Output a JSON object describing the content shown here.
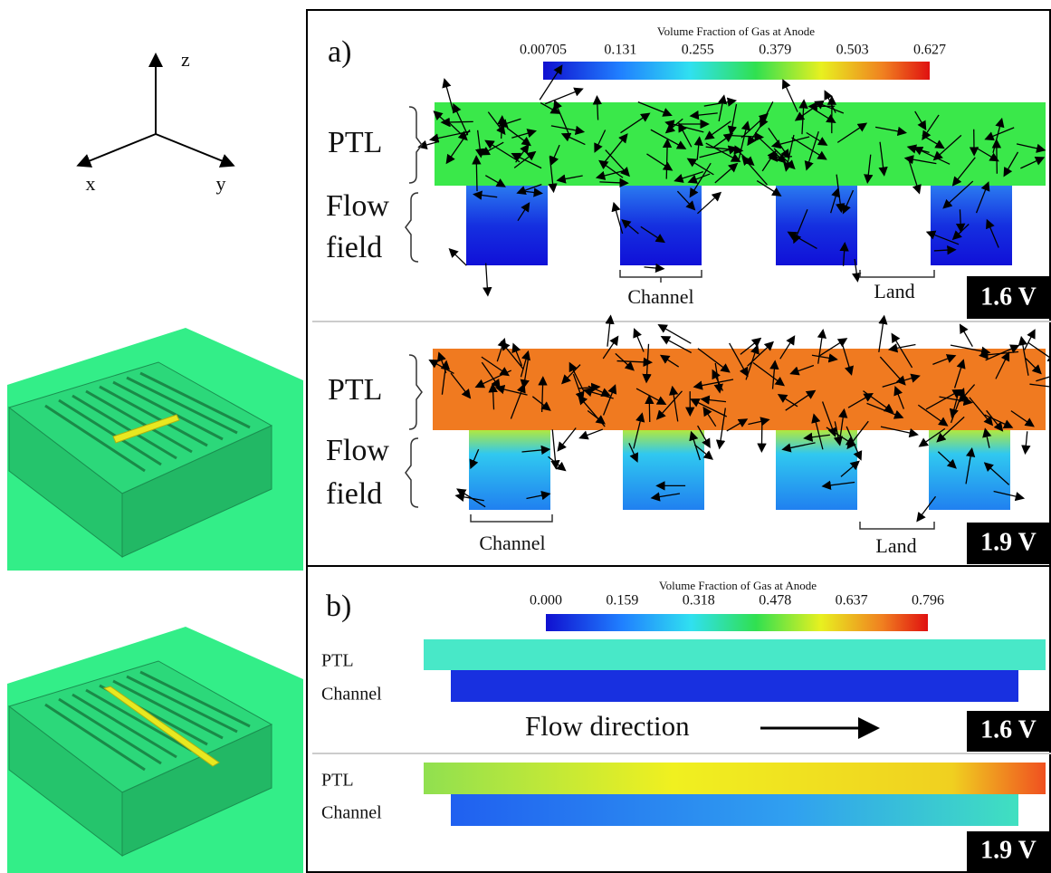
{
  "axes": {
    "z": "z",
    "x": "x",
    "y": "y"
  },
  "panel_a": {
    "label": "a)",
    "colorbar_title": "Volume Fraction of Gas at Anode",
    "colorbar_ticks": [
      "0.00705",
      "0.131",
      "0.255",
      "0.379",
      "0.503",
      "0.627"
    ],
    "rows": [
      {
        "ptl": "PTL",
        "flow": "Flow",
        "field": "field",
        "channel": "Channel",
        "land": "Land",
        "voltage": "1.6 V"
      },
      {
        "ptl": "PTL",
        "flow": "Flow",
        "field": "field",
        "channel": "Channel",
        "land": "Land",
        "voltage": "1.9 V"
      }
    ]
  },
  "panel_b": {
    "label": "b)",
    "colorbar_title": "Volume Fraction of Gas at Anode",
    "colorbar_ticks": [
      "0.000",
      "0.159",
      "0.318",
      "0.478",
      "0.637",
      "0.796"
    ],
    "flow_direction": "Flow direction",
    "rows": [
      {
        "ptl": "PTL",
        "channel": "Channel",
        "voltage": "1.6 V"
      },
      {
        "ptl": "PTL",
        "channel": "Channel",
        "voltage": "1.9 V"
      }
    ]
  }
}
